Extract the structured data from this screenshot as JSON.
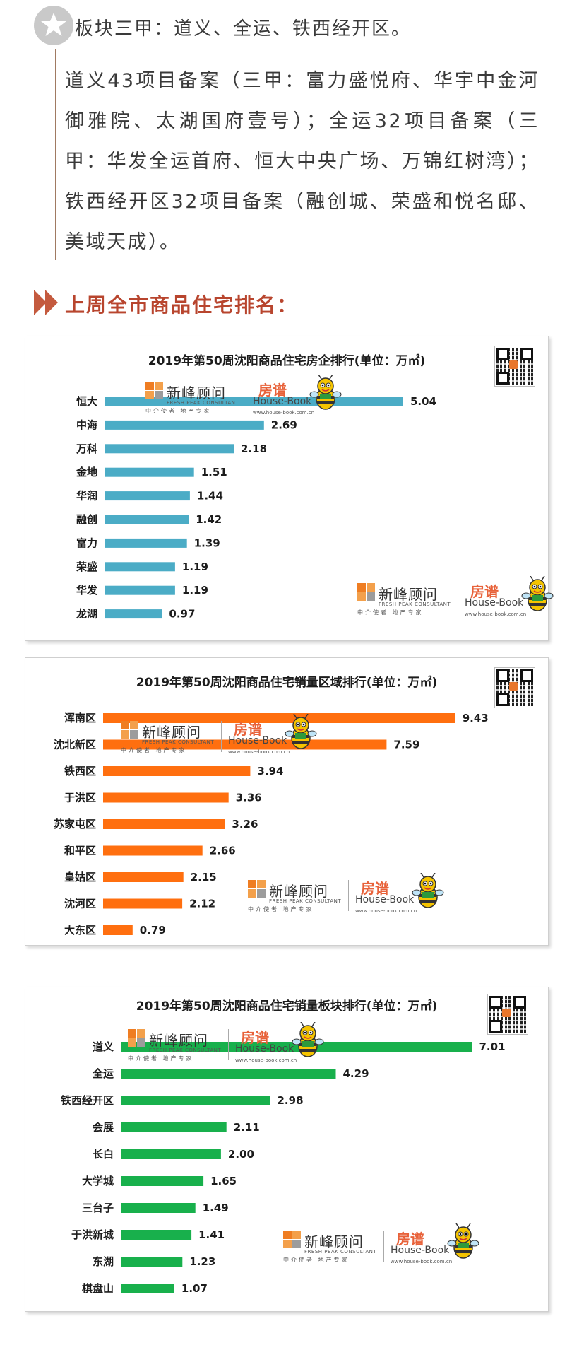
{
  "intro": {
    "heading": "板块三甲：道义、全运、铁西经开区。",
    "paragraph": "道义43项目备案（三甲：富力盛悦府、华宇中金河御雅院、太湖国府壹号）；全运32项目备案（三甲：华发全运首府、恒大中央广场、万锦红树湾）；铁西经开区32项目备案（融创城、荣盛和悦名邸、美域天成）。"
  },
  "ranking_heading": "上周全市商品住宅排名：",
  "watermark": {
    "brand_zh": "新峰顾问",
    "brand_en": "FRESH PEAK CONSULTANT",
    "brand_sub": "中介使者 地产专家",
    "housebook_zh": "房谱",
    "housebook_en": "House-Book",
    "housebook_url": "www.house-book.com.cn"
  },
  "colors": {
    "chart1_bar": "#4bacc6",
    "chart2_bar": "#ff6f0f",
    "chart3_bar": "#18b04c",
    "heading_accent": "#b8452e"
  },
  "chart_data": [
    {
      "type": "bar",
      "orientation": "horizontal",
      "title": "2019年第50周沈阳商品住宅房企排行(单位：万㎡)",
      "categories": [
        "恒大",
        "中海",
        "万科",
        "金地",
        "华润",
        "融创",
        "富力",
        "荣盛",
        "华发",
        "龙湖"
      ],
      "values": [
        5.04,
        2.69,
        2.18,
        1.51,
        1.44,
        1.42,
        1.39,
        1.19,
        1.19,
        0.97
      ],
      "value_labels": [
        "5.04",
        "2.69",
        "2.18",
        "1.51",
        "1.44",
        "1.42",
        "1.39",
        "1.19",
        "1.19",
        "0.97"
      ],
      "xlim": [
        0,
        5.6
      ],
      "grid": false,
      "legend": "none"
    },
    {
      "type": "bar",
      "orientation": "horizontal",
      "title": "2019年第50周沈阳商品住宅销量区域排行(单位：万㎡)",
      "categories": [
        "浑南区",
        "沈北新区",
        "铁西区",
        "于洪区",
        "苏家屯区",
        "和平区",
        "皇姑区",
        "沈河区",
        "大东区"
      ],
      "values": [
        9.43,
        7.59,
        3.94,
        3.36,
        3.26,
        2.66,
        2.15,
        2.12,
        0.79
      ],
      "value_labels": [
        "9.43",
        "7.59",
        "3.94",
        "3.36",
        "3.26",
        "2.66",
        "2.15",
        "2.12",
        "0.79"
      ],
      "xlim": [
        0,
        10.4
      ],
      "grid": false,
      "legend": "none"
    },
    {
      "type": "bar",
      "orientation": "horizontal",
      "title": "2019年第50周沈阳商品住宅销量板块排行(单位：万㎡)",
      "categories": [
        "道义",
        "全运",
        "铁西经开区",
        "会展",
        "长白",
        "大学城",
        "三台子",
        "于洪新城",
        "东湖",
        "棋盘山"
      ],
      "values": [
        7.01,
        4.29,
        2.98,
        2.11,
        2.0,
        1.65,
        1.49,
        1.41,
        1.23,
        1.07
      ],
      "value_labels": [
        "7.01",
        "4.29",
        "2.98",
        "2.11",
        "2.00",
        "1.65",
        "1.49",
        "1.41",
        "1.23",
        "1.07"
      ],
      "xlim": [
        0,
        7.75
      ],
      "grid": false,
      "legend": "none"
    }
  ]
}
